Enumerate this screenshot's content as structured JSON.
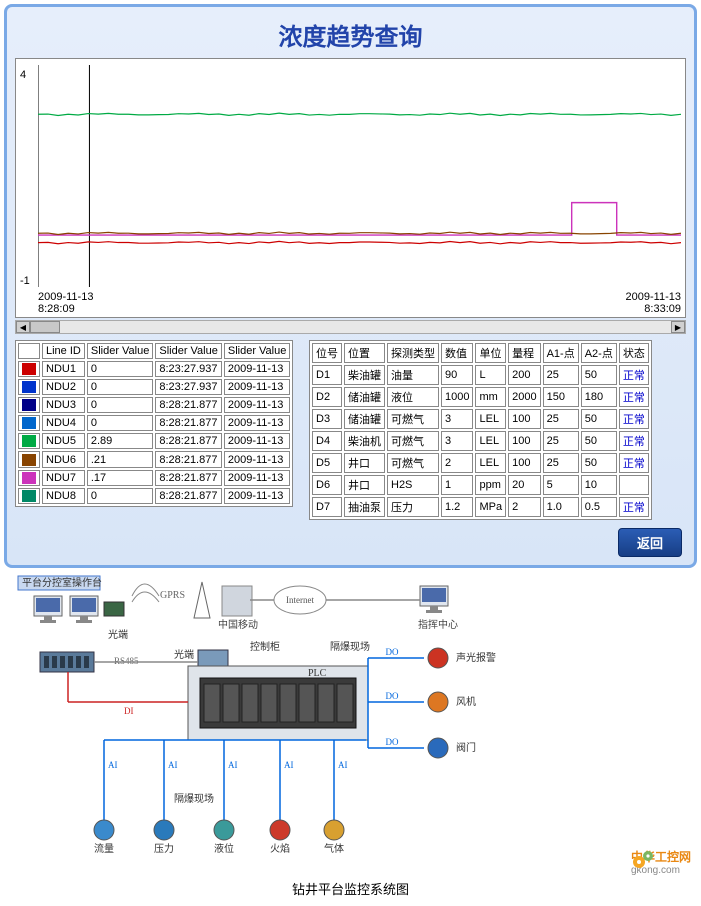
{
  "panel": {
    "title": "浓度趋势查询",
    "back_button": "返回"
  },
  "chart": {
    "type": "line",
    "ylim": [
      -1,
      4
    ],
    "y_ticks": [
      -1,
      4
    ],
    "x_start": "2009-11-13\n8:28:09",
    "x_end": "2009-11-13\n8:33:09",
    "series": [
      {
        "name": "NDU5",
        "color": "#00aa44",
        "baseline": 2.89,
        "pulse": false
      },
      {
        "name": "NDU7",
        "color": "#cc33bb",
        "baseline": 0.17,
        "pulse": true,
        "pulse_start": 0.83,
        "pulse_end": 0.9,
        "pulse_value": 0.9
      },
      {
        "name": "NDU6",
        "color": "#884400",
        "baseline": 0.21,
        "pulse": false
      },
      {
        "name": "NDU1",
        "color": "#cc0000",
        "baseline": 0,
        "pulse": false
      }
    ],
    "background_color": "#ffffff",
    "axis_color": "#000000",
    "marker_line_x": 0.08
  },
  "line_table": {
    "headers": [
      "Line ID",
      "Slider Value",
      "Slider Value",
      "Slider Value"
    ],
    "rows": [
      {
        "c": "#cc0000",
        "id": "NDU1",
        "v1": "0",
        "v2": "8:23:27.937",
        "v3": "2009-11-13"
      },
      {
        "c": "#0033cc",
        "id": "NDU2",
        "v1": "0",
        "v2": "8:23:27.937",
        "v3": "2009-11-13"
      },
      {
        "c": "#000088",
        "id": "NDU3",
        "v1": "0",
        "v2": "8:28:21.877",
        "v3": "2009-11-13"
      },
      {
        "c": "#0066cc",
        "id": "NDU4",
        "v1": "0",
        "v2": "8:28:21.877",
        "v3": "2009-11-13"
      },
      {
        "c": "#00aa44",
        "id": "NDU5",
        "v1": "2.89",
        "v2": "8:28:21.877",
        "v3": "2009-11-13"
      },
      {
        "c": "#884400",
        "id": "NDU6",
        "v1": ".21",
        "v2": "8:28:21.877",
        "v3": "2009-11-13"
      },
      {
        "c": "#cc33bb",
        "id": "NDU7",
        "v1": ".17",
        "v2": "8:28:21.877",
        "v3": "2009-11-13"
      },
      {
        "c": "#008866",
        "id": "NDU8",
        "v1": "0",
        "v2": "8:28:21.877",
        "v3": "2009-11-13"
      }
    ]
  },
  "sensor_table": {
    "headers": [
      "位号",
      "位置",
      "探测类型",
      "数值",
      "单位",
      "量程",
      "A1-点",
      "A2-点",
      "状态"
    ],
    "rows": [
      [
        "D1",
        "柴油罐",
        "油量",
        "90",
        "L",
        "200",
        "25",
        "50",
        "正常"
      ],
      [
        "D2",
        "储油罐",
        "液位",
        "1000",
        "mm",
        "2000",
        "150",
        "180",
        "正常"
      ],
      [
        "D3",
        "储油罐",
        "可燃气",
        "3",
        "LEL",
        "100",
        "25",
        "50",
        "正常"
      ],
      [
        "D4",
        "柴油机",
        "可燃气",
        "3",
        "LEL",
        "100",
        "25",
        "50",
        "正常"
      ],
      [
        "D5",
        "井口",
        "可燃气",
        "2",
        "LEL",
        "100",
        "25",
        "50",
        "正常"
      ],
      [
        "D6",
        "井口",
        "H2S",
        "1",
        "ppm",
        "20",
        "5",
        "10",
        ""
      ],
      [
        "D7",
        "抽油泵",
        "压力",
        "1.2",
        "MPa",
        "2",
        "1.0",
        "0.5",
        "正常"
      ]
    ]
  },
  "diagram": {
    "title": "钻井平台监控系统图",
    "labels": {
      "console": "平台分控室操作台",
      "gprs": "GPRS",
      "china_mobile": "中国移动",
      "internet": "Internet",
      "command_center": "指挥中心",
      "guangduan1": "光端",
      "guangduan2": "光端",
      "rs485": "RS485",
      "cabinet": "控制柜",
      "plc": "PLC",
      "explosion_site1": "隔爆现场",
      "explosion_site2": "隔爆现场",
      "alarm": "声光报警",
      "fan": "风机",
      "valve": "阀门",
      "flow": "流量",
      "pressure": "压力",
      "level": "液位",
      "flame": "火焰",
      "gas": "气体",
      "ai": "AI",
      "di": "DI",
      "do": "DO"
    },
    "colors": {
      "ai_line": "#0066dd",
      "di_line": "#cc2222",
      "do_line": "#0066dd",
      "box_stroke": "#4477cc",
      "plc_body": "#3a3a3a"
    }
  },
  "branding": {
    "name": "中华工控网",
    "url": "gkong.com",
    "gear_colors": [
      "#f5a623",
      "#7bb661"
    ]
  }
}
